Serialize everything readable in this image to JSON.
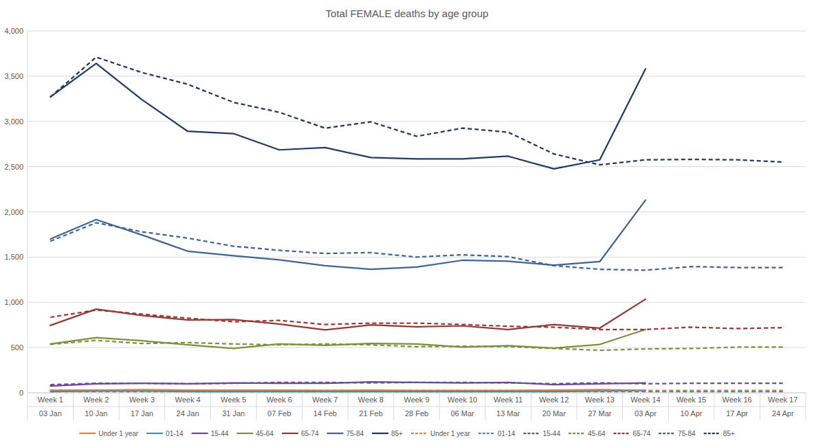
{
  "chart_data": {
    "type": "line",
    "title": "Total FEMALE deaths by age group",
    "categories": [
      "Week 1",
      "Week 2",
      "Week 3",
      "Week 4",
      "Week 5",
      "Week 6",
      "Week 7",
      "Week 8",
      "Week 9",
      "Week 10",
      "Week 11",
      "Week 12",
      "Week 13",
      "Week 14",
      "Week 15",
      "Week 16",
      "Week 17"
    ],
    "category_dates": [
      "03 Jan",
      "10 Jan",
      "17 Jan",
      "24 Jan",
      "31 Jan",
      "07 Feb",
      "14 Feb",
      "21 Feb",
      "28 Feb",
      "06 Mar",
      "13 Mar",
      "20 Mar",
      "27 Mar",
      "03 Apr",
      "10 Apr",
      "17 Apr",
      "24 Apr"
    ],
    "ylim": [
      0,
      4000
    ],
    "yticks": [
      0,
      500,
      {
        "value": 1000,
        "label": "1,000"
      },
      {
        "value": 1500,
        "label": "1,500"
      },
      {
        "value": 2000,
        "label": "2,000"
      },
      {
        "value": 2500,
        "label": "2,500"
      },
      {
        "value": 3000,
        "label": "3,000"
      },
      {
        "value": 3500,
        "label": "3,500"
      },
      {
        "value": 4000,
        "label": "4,000"
      }
    ],
    "grid": true,
    "legend": "bottom",
    "series": [
      {
        "name": "Under 1 year",
        "color": "#ed7d31",
        "line_style": "solid",
        "values": [
          30,
          30,
          35,
          30,
          30,
          30,
          25,
          30,
          25,
          25,
          25,
          30,
          35,
          25,
          null,
          null,
          null
        ]
      },
      {
        "name": "01-14",
        "color": "#3b8fb8",
        "line_style": "solid",
        "values": [
          15,
          20,
          20,
          15,
          15,
          15,
          15,
          15,
          15,
          15,
          15,
          15,
          20,
          25,
          null,
          null,
          null
        ]
      },
      {
        "name": "15-44",
        "color": "#6a4c93",
        "line_style": "solid",
        "values": [
          75,
          100,
          105,
          100,
          110,
          105,
          105,
          120,
          115,
          110,
          115,
          90,
          100,
          110,
          null,
          null,
          null
        ]
      },
      {
        "name": "45-64",
        "color": "#77933c",
        "line_style": "solid",
        "values": [
          540,
          610,
          575,
          530,
          490,
          540,
          525,
          545,
          540,
          505,
          520,
          495,
          535,
          700,
          null,
          null,
          null
        ]
      },
      {
        "name": "65-74",
        "color": "#953735",
        "line_style": "solid",
        "values": [
          745,
          925,
          855,
          805,
          810,
          760,
          695,
          750,
          730,
          740,
          700,
          755,
          715,
          1035,
          null,
          null,
          null
        ]
      },
      {
        "name": "75-84",
        "color": "#3e6494",
        "line_style": "solid",
        "values": [
          1700,
          1915,
          1745,
          1565,
          1515,
          1470,
          1405,
          1365,
          1390,
          1465,
          1455,
          1410,
          1450,
          2130,
          null,
          null,
          null
        ]
      },
      {
        "name": "85+",
        "color": "#1f3864",
        "line_style": "solid",
        "values": [
          3270,
          3640,
          3240,
          2890,
          2865,
          2685,
          2710,
          2600,
          2585,
          2585,
          2615,
          2475,
          2575,
          3580,
          null,
          null,
          null
        ]
      },
      {
        "name": "Under 1 year",
        "color": "#ed7d31",
        "line_style": "dashed",
        "values": [
          25,
          25,
          25,
          25,
          25,
          25,
          25,
          25,
          25,
          25,
          25,
          25,
          25,
          25,
          25,
          25,
          25
        ]
      },
      {
        "name": "01-14",
        "color": "#3b8fb8",
        "line_style": "dashed",
        "values": [
          15,
          15,
          15,
          15,
          15,
          15,
          15,
          15,
          15,
          15,
          15,
          15,
          15,
          15,
          15,
          15,
          15
        ]
      },
      {
        "name": "15-44",
        "color": "#6a4c93",
        "line_style": "dashed",
        "values": [
          90,
          105,
          105,
          100,
          105,
          115,
          115,
          110,
          115,
          115,
          110,
          100,
          110,
          100,
          105,
          105,
          105
        ]
      },
      {
        "name": "45-64",
        "color": "#77933c",
        "line_style": "dashed",
        "values": [
          535,
          580,
          545,
          555,
          540,
          530,
          540,
          530,
          510,
          515,
          510,
          490,
          470,
          485,
          490,
          505,
          505
        ]
      },
      {
        "name": "65-74",
        "color": "#953735",
        "line_style": "dashed",
        "values": [
          835,
          915,
          870,
          825,
          785,
          800,
          755,
          770,
          770,
          755,
          735,
          725,
          700,
          700,
          725,
          710,
          720
        ]
      },
      {
        "name": "75-84",
        "color": "#3e6494",
        "line_style": "dashed",
        "values": [
          1675,
          1880,
          1780,
          1710,
          1620,
          1575,
          1540,
          1550,
          1500,
          1525,
          1505,
          1405,
          1365,
          1355,
          1395,
          1385,
          1385
        ]
      },
      {
        "name": "85+",
        "color": "#1f3864",
        "line_style": "dashed",
        "values": [
          3270,
          3710,
          3540,
          3410,
          3210,
          3100,
          2925,
          2995,
          2835,
          2925,
          2880,
          2640,
          2520,
          2575,
          2580,
          2575,
          2550
        ]
      }
    ]
  }
}
